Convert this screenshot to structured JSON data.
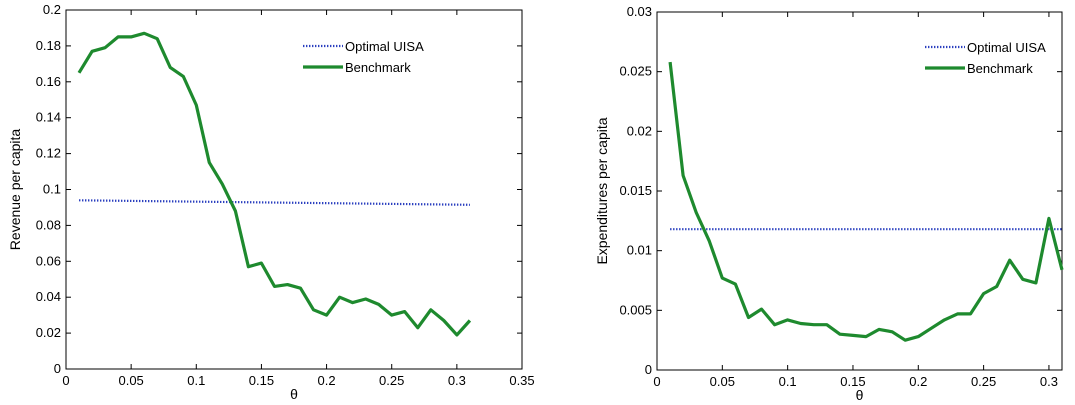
{
  "chart_data": [
    {
      "type": "line",
      "xlabel": "θ",
      "ylabel": "Revenue per capita",
      "xlim": [
        0,
        0.35
      ],
      "ylim": [
        0,
        0.2
      ],
      "xticks": [
        0,
        0.05,
        0.1,
        0.15,
        0.2,
        0.25,
        0.3,
        0.35
      ],
      "xtick_labels": [
        "0",
        "0.05",
        "0.1",
        "0.15",
        "0.2",
        "0.25",
        "0.3",
        "0.35"
      ],
      "yticks": [
        0,
        0.02,
        0.04,
        0.06,
        0.08,
        0.1,
        0.12,
        0.14,
        0.16,
        0.18,
        0.2
      ],
      "ytick_labels": [
        "0",
        "0.02",
        "0.04",
        "0.06",
        "0.08",
        "0.1",
        "0.12",
        "0.14",
        "0.16",
        "0.18",
        "0.2"
      ],
      "grid": false,
      "legend_position": "top-right",
      "series": [
        {
          "name": "Optimal UISA",
          "color": "#2a3fbf",
          "style": "dotted",
          "x": [
            0.01,
            0.31
          ],
          "y": [
            0.094,
            0.0915
          ]
        },
        {
          "name": "Benchmark",
          "color": "#1e8a2e",
          "style": "solid",
          "x": [
            0.01,
            0.02,
            0.03,
            0.04,
            0.05,
            0.06,
            0.07,
            0.08,
            0.09,
            0.1,
            0.11,
            0.12,
            0.13,
            0.14,
            0.15,
            0.16,
            0.17,
            0.18,
            0.19,
            0.2,
            0.21,
            0.22,
            0.23,
            0.24,
            0.25,
            0.26,
            0.27,
            0.28,
            0.29,
            0.3,
            0.31
          ],
          "y": [
            0.165,
            0.177,
            0.179,
            0.185,
            0.185,
            0.187,
            0.184,
            0.168,
            0.163,
            0.147,
            0.115,
            0.103,
            0.088,
            0.057,
            0.059,
            0.046,
            0.047,
            0.045,
            0.033,
            0.03,
            0.04,
            0.037,
            0.039,
            0.036,
            0.03,
            0.032,
            0.023,
            0.033,
            0.027,
            0.019,
            0.027
          ]
        }
      ]
    },
    {
      "type": "line",
      "xlabel": "θ",
      "ylabel": "Expenditures per capita",
      "xlim": [
        0,
        0.31
      ],
      "ylim": [
        0,
        0.03
      ],
      "xticks": [
        0,
        0.05,
        0.1,
        0.15,
        0.2,
        0.25,
        0.3
      ],
      "xtick_labels": [
        "0",
        "0.05",
        "0.1",
        "0.15",
        "0.2",
        "0.25",
        "0.3"
      ],
      "yticks": [
        0,
        0.005,
        0.01,
        0.015,
        0.02,
        0.025,
        0.03
      ],
      "ytick_labels": [
        "0",
        "0.005",
        "0.01",
        "0.015",
        "0.02",
        "0.025",
        "0.03"
      ],
      "grid": false,
      "legend_position": "top-right",
      "series": [
        {
          "name": "Optimal UISA",
          "color": "#2a3fbf",
          "style": "dotted",
          "x": [
            0.01,
            0.31
          ],
          "y": [
            0.0118,
            0.0118
          ]
        },
        {
          "name": "Benchmark",
          "color": "#1e8a2e",
          "style": "solid",
          "x": [
            0.01,
            0.02,
            0.03,
            0.04,
            0.05,
            0.06,
            0.07,
            0.08,
            0.09,
            0.1,
            0.11,
            0.12,
            0.13,
            0.14,
            0.15,
            0.16,
            0.17,
            0.18,
            0.19,
            0.2,
            0.21,
            0.22,
            0.23,
            0.24,
            0.25,
            0.26,
            0.27,
            0.28,
            0.29,
            0.3,
            0.31
          ],
          "y": [
            0.0258,
            0.0163,
            0.0132,
            0.0108,
            0.0077,
            0.0072,
            0.0044,
            0.0051,
            0.0038,
            0.0042,
            0.0039,
            0.0038,
            0.0038,
            0.003,
            0.0029,
            0.0028,
            0.0034,
            0.0032,
            0.0025,
            0.0028,
            0.0035,
            0.0042,
            0.0047,
            0.0047,
            0.0064,
            0.007,
            0.0092,
            0.0076,
            0.0073,
            0.0127,
            0.0084
          ]
        }
      ]
    }
  ]
}
